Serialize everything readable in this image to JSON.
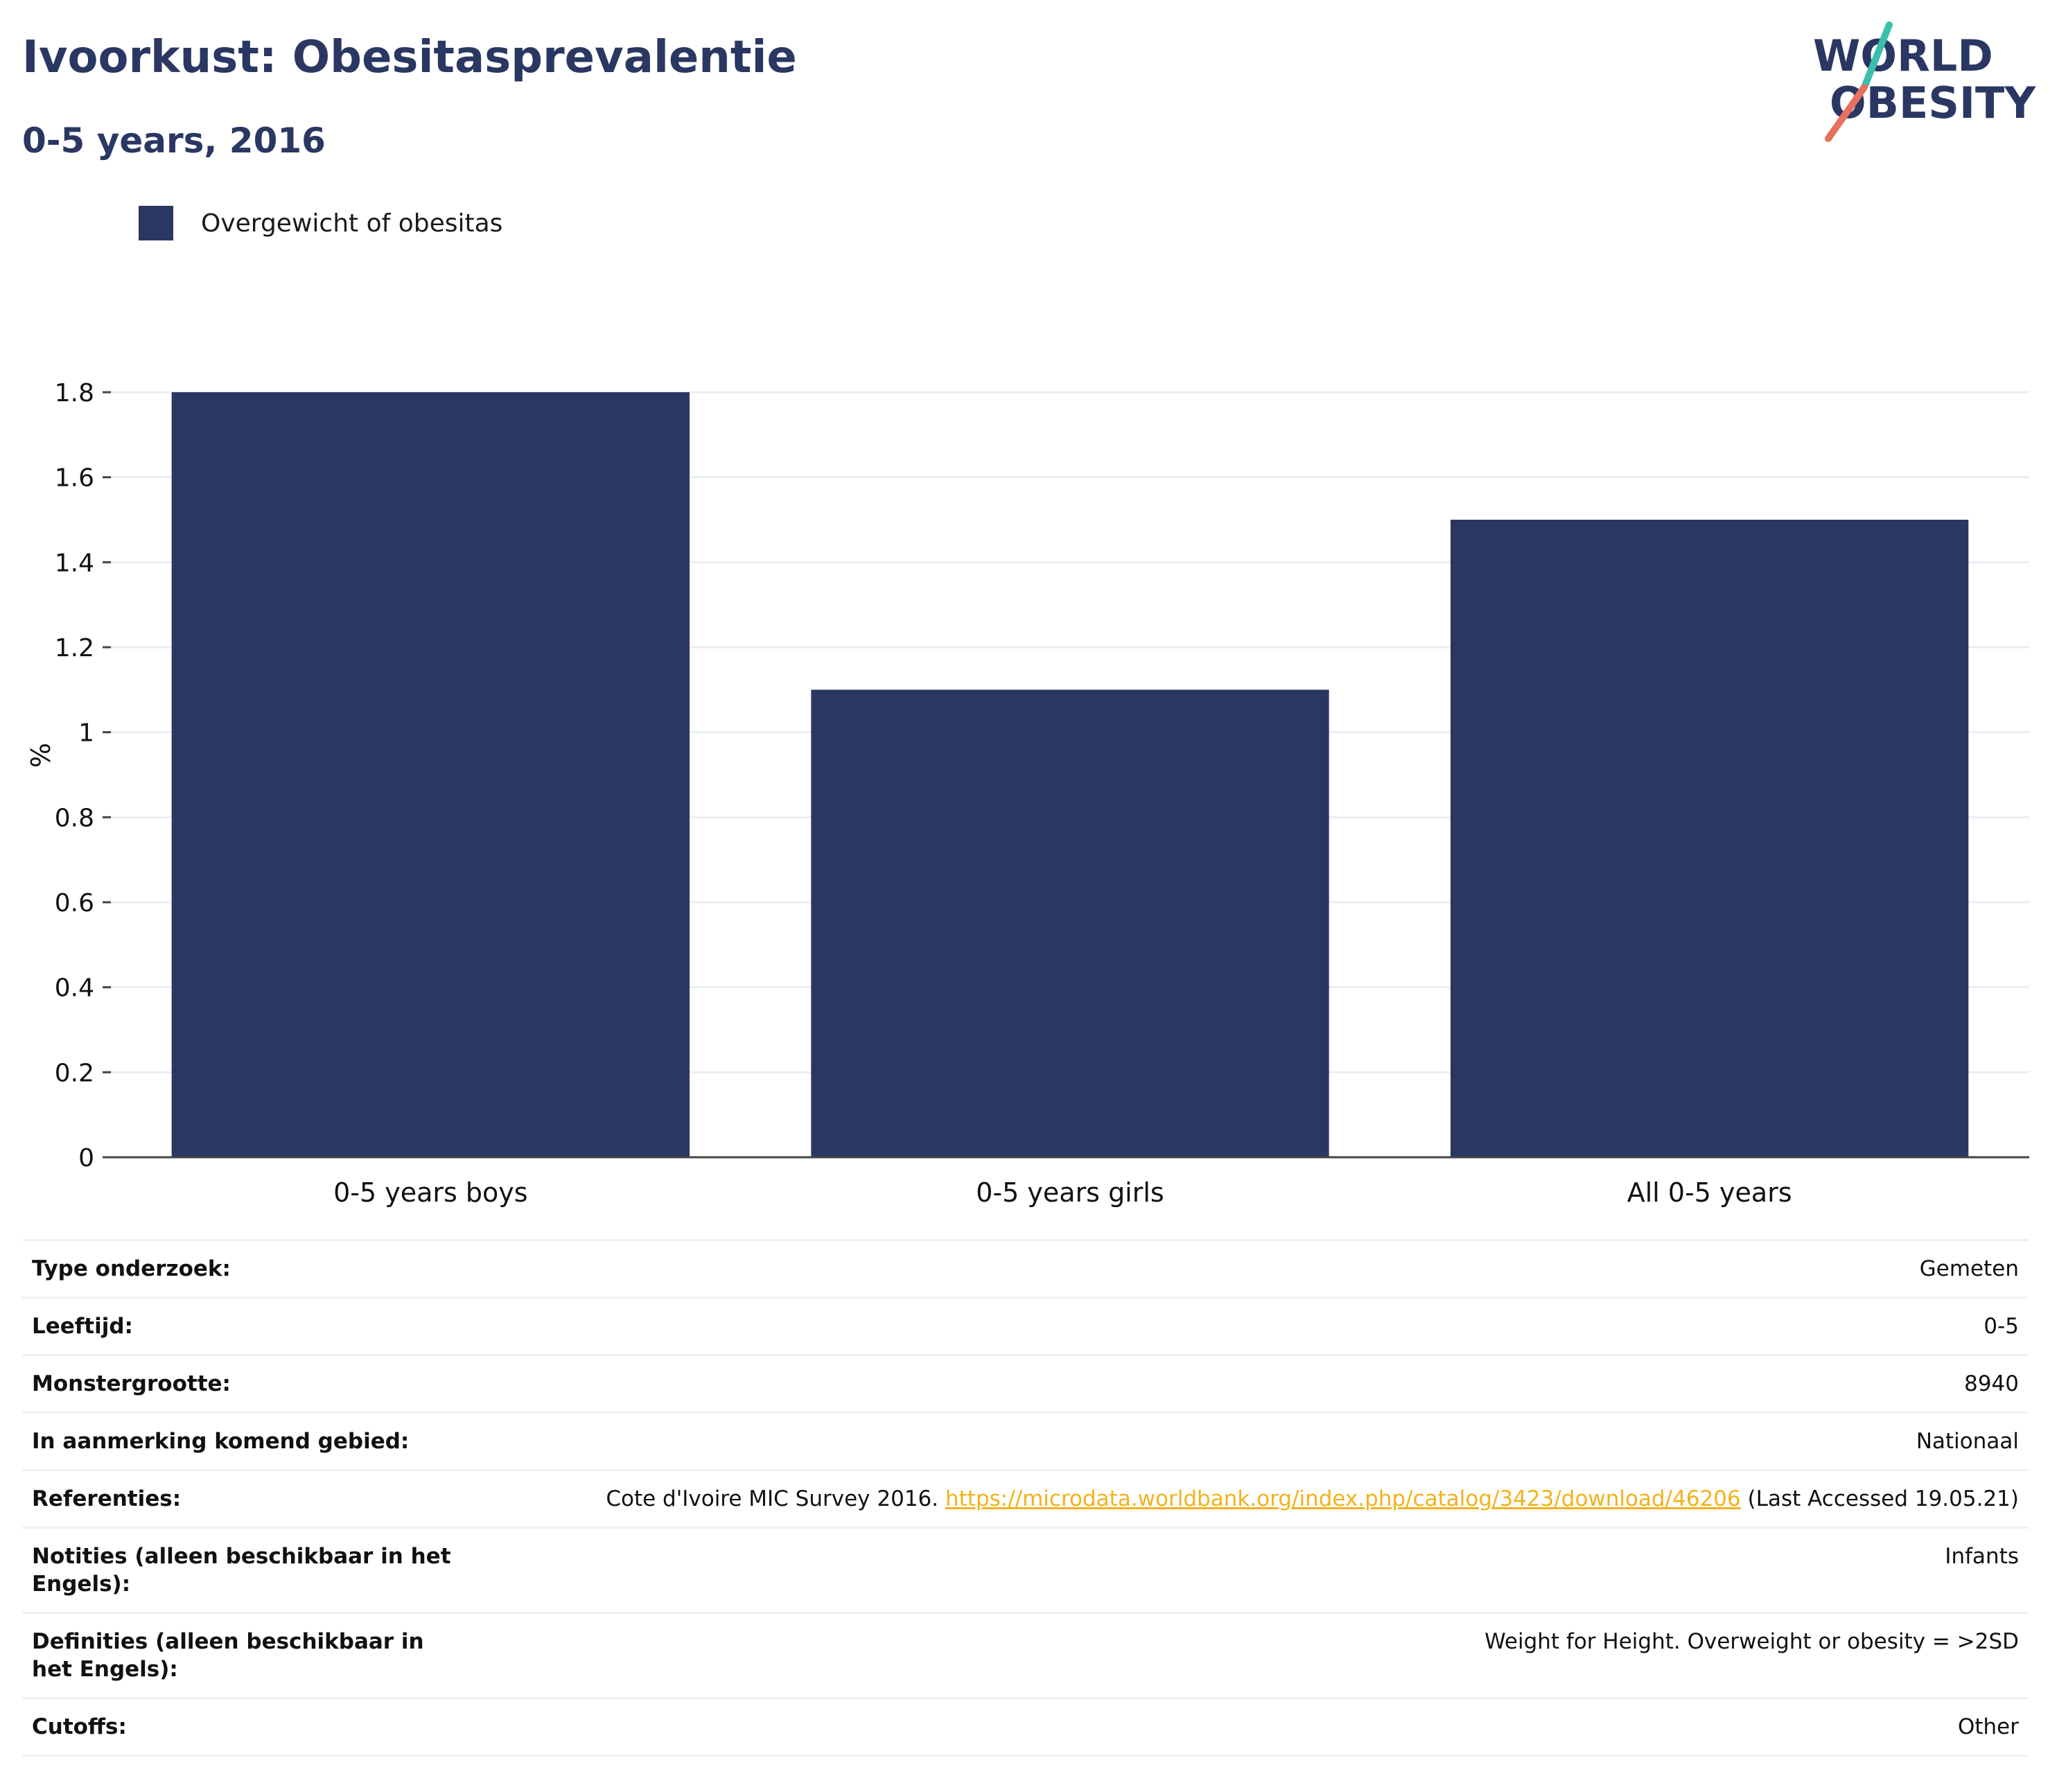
{
  "header": {
    "title": "Ivoorkust: Obesitasprevalentie",
    "subtitle": "0-5 years, 2016"
  },
  "logo": {
    "line1": "WORLD",
    "line2": "OBESITY"
  },
  "legend": {
    "label": "Overgewicht of obesitas",
    "color": "#2a3762"
  },
  "chart_data": {
    "type": "bar",
    "categories": [
      "0-5 years boys",
      "0-5 years girls",
      "All 0-5 years"
    ],
    "series": [
      {
        "name": "Overgewicht of obesitas",
        "values": [
          1.8,
          1.1,
          1.5
        ]
      }
    ],
    "ylabel": "%",
    "ylim": [
      0,
      1.8
    ],
    "yticks": [
      0,
      0.2,
      0.4,
      0.6,
      0.8,
      1,
      1.2,
      1.4,
      1.6,
      1.8
    ],
    "ytick_labels": [
      "0",
      "0.2",
      "0.4",
      "0.6",
      "0.8",
      "1",
      "1.2",
      "1.4",
      "1.6",
      "1.8"
    ],
    "grid": true,
    "bar_color": "#2a3762"
  },
  "details": [
    {
      "label": "Type onderzoek:",
      "value": "Gemeten"
    },
    {
      "label": "Leeftijd:",
      "value": "0-5"
    },
    {
      "label": "Monstergrootte:",
      "value": "8940"
    },
    {
      "label": "In aanmerking komend gebied:",
      "value": "Nationaal"
    },
    {
      "label": "Referenties:",
      "value_prefix": "Cote d'Ivoire MIC Survey 2016. ",
      "link": "https://microdata.worldbank.org/index.php/catalog/3423/download/46206",
      "value_suffix": " (Last Accessed 19.05.21)"
    },
    {
      "label": "Notities (alleen beschikbaar in het Engels):",
      "value": "Infants"
    },
    {
      "label": "Definities (alleen beschikbaar in het Engels):",
      "value": "Weight for Height. Overweight or obesity = >2SD"
    },
    {
      "label": "Cutoffs:",
      "value": "Other"
    }
  ]
}
